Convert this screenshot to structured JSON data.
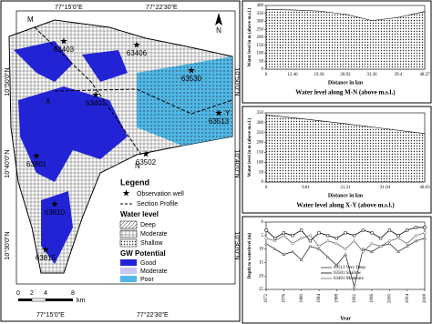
{
  "map": {
    "coords": {
      "top": [
        "77°15'0\"E",
        "77°22'30\"E"
      ],
      "bottom": [
        "77°15'0\"E",
        "77°22'30\"E"
      ],
      "left": [
        "10°50'0\"N",
        "10°40'0\"N",
        "10°30'0\"N"
      ],
      "right": [
        "10°50'0\"N",
        "10°40'0\"N",
        "10°30'0\"N"
      ]
    },
    "wells": [
      "63403",
      "63406",
      "63530",
      "63401",
      "63513",
      "63502",
      "63801",
      "63810",
      "63815"
    ],
    "section_points": [
      "M",
      "N",
      "X",
      "Y"
    ],
    "north": "N",
    "scale": {
      "ticks": [
        "0",
        "2",
        "4",
        "8"
      ],
      "unit": "km"
    },
    "legend": {
      "title": "Legend",
      "well": "Observation well",
      "profile": "Section Profile",
      "water_level": {
        "title": "Water level",
        "items": [
          "Deep",
          "Moderate",
          "Shallow"
        ]
      },
      "gw": {
        "title": "GW Potential",
        "items": [
          "Good",
          "Moderate",
          "Poor"
        ]
      }
    }
  },
  "chart_data": [
    {
      "type": "area",
      "title": "Water level along M-N (above m.s.l.)",
      "x_label": "Distance in km",
      "y_label": "Water level in m (above m.s.l.)",
      "categories": [
        "0",
        "12.46",
        "19.36",
        "20.92",
        "33.36",
        "39.4",
        "48.27"
      ],
      "values": [
        375,
        372,
        365,
        345,
        305,
        325,
        362
      ],
      "ylim": [
        0,
        400
      ],
      "yticks": [
        0,
        50,
        100,
        150,
        200,
        250,
        300,
        350,
        400
      ]
    },
    {
      "type": "area",
      "title": "Water level along X-Y (above m.s.l.)",
      "x_label": "Distance in km",
      "y_label": "Water level in m (above m.s.l.)",
      "categories": [
        "0",
        "9.81",
        "21.31",
        "31.04",
        "40.63"
      ],
      "values": [
        340,
        318,
        295,
        270,
        245
      ],
      "ylim": [
        0,
        350
      ],
      "yticks": [
        0,
        50,
        100,
        150,
        200,
        250,
        300,
        350
      ]
    },
    {
      "type": "line",
      "x_label": "Year",
      "y_label": "Depth to waterlevel (m)",
      "invert_y": true,
      "x": [
        1972,
        1974,
        1976,
        1978,
        1980,
        1982,
        1984,
        1986,
        1988,
        1990,
        1992,
        1994,
        1996,
        1998,
        2000,
        2002,
        2004,
        2006,
        2008
      ],
      "xlim": [
        1972,
        2008
      ],
      "xticks": [
        1972,
        1976,
        1980,
        1984,
        1988,
        1992,
        1996,
        2000,
        2004,
        2008
      ],
      "ylim": [
        0,
        25
      ],
      "yticks": [
        0,
        5,
        10,
        15,
        20,
        25
      ],
      "series": [
        {
          "name": "63513 Very Deep",
          "color": "#333333",
          "marker": "triangle",
          "values": [
            8,
            10,
            12,
            11,
            14,
            9,
            10,
            13,
            16,
            12,
            24,
            10,
            11,
            9,
            8,
            11,
            9,
            7,
            6
          ]
        },
        {
          "name": "63501 Shallow",
          "color": "#000000",
          "marker": "square",
          "values": [
            3,
            6,
            4,
            5,
            3,
            7,
            4,
            5,
            6,
            4,
            5,
            3,
            4,
            6,
            3,
            5,
            3,
            2,
            2
          ]
        },
        {
          "name": "63401 Moderate",
          "color": "#666666",
          "marker": "circle",
          "values": [
            6,
            7,
            5,
            8,
            6,
            5,
            9,
            7,
            8,
            10,
            7,
            11,
            8,
            9,
            7,
            6,
            8,
            5,
            4
          ]
        }
      ]
    }
  ]
}
